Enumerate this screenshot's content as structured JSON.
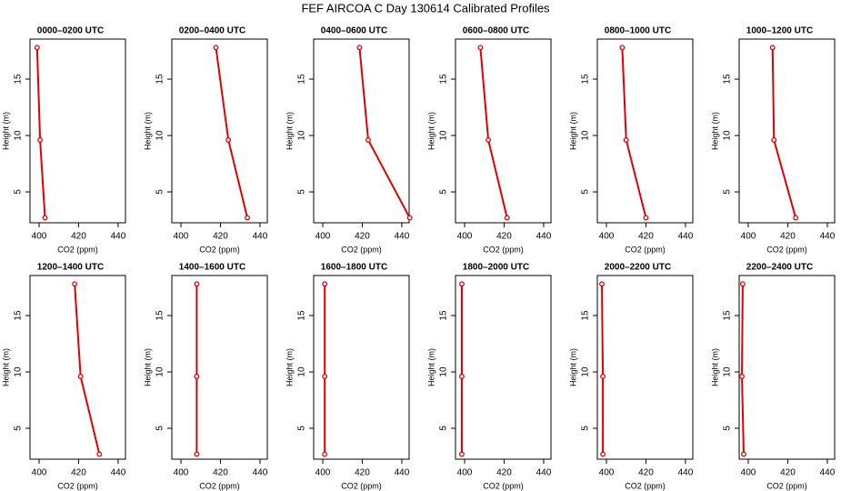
{
  "title": "FEF AIRCOA C  Day 130614  Calibrated Profiles",
  "chart_data": [
    {
      "type": "line",
      "title": "0000–0200 UTC",
      "x": [
        399,
        400.5,
        403
      ],
      "values": [
        17.8,
        9.6,
        2.7
      ],
      "xlabel": "CO2 (ppm)",
      "ylabel": "Height (m)",
      "xlim": [
        395.4,
        443.7
      ],
      "ylim": [
        2.26,
        18.55
      ],
      "xticks": [
        400,
        420,
        440
      ],
      "yticks": [
        5,
        10,
        15
      ],
      "color": "#e00000"
    },
    {
      "type": "line",
      "title": "0200–0400 UTC",
      "x": [
        417.7,
        424,
        433.6
      ],
      "values": [
        17.8,
        9.6,
        2.7
      ],
      "xlabel": "CO2 (ppm)",
      "ylabel": "Height (m)",
      "xlim": [
        395.4,
        443.7
      ],
      "ylim": [
        2.26,
        18.55
      ],
      "xticks": [
        400,
        420,
        440
      ],
      "yticks": [
        5,
        10,
        15
      ],
      "color": "#e00000"
    },
    {
      "type": "line",
      "title": "0400–0600 UTC",
      "x": [
        418.6,
        423,
        444
      ],
      "values": [
        17.8,
        9.6,
        2.7
      ],
      "xlabel": "CO2 (ppm)",
      "ylabel": "Height (m)",
      "xlim": [
        395.4,
        443.7
      ],
      "ylim": [
        2.26,
        18.55
      ],
      "xticks": [
        400,
        420,
        440
      ],
      "yticks": [
        5,
        10,
        15
      ],
      "color": "#e00000"
    },
    {
      "type": "line",
      "title": "0600–0800 UTC",
      "x": [
        408,
        412,
        421.5
      ],
      "values": [
        17.8,
        9.6,
        2.7
      ],
      "xlabel": "CO2 (ppm)",
      "ylabel": "Height (m)",
      "xlim": [
        395.4,
        443.7
      ],
      "ylim": [
        2.26,
        18.55
      ],
      "xticks": [
        400,
        420,
        440
      ],
      "yticks": [
        5,
        10,
        15
      ],
      "color": "#e00000"
    },
    {
      "type": "line",
      "title": "0800–1000 UTC",
      "x": [
        408,
        410,
        420
      ],
      "values": [
        17.8,
        9.6,
        2.7
      ],
      "xlabel": "CO2 (ppm)",
      "ylabel": "Height (m)",
      "xlim": [
        395.4,
        443.7
      ],
      "ylim": [
        2.26,
        18.55
      ],
      "xticks": [
        400,
        420,
        440
      ],
      "yticks": [
        5,
        10,
        15
      ],
      "color": "#e00000"
    },
    {
      "type": "line",
      "title": "1000–1200 UTC",
      "x": [
        412.3,
        413,
        424
      ],
      "values": [
        17.8,
        9.6,
        2.7
      ],
      "xlabel": "CO2 (ppm)",
      "ylabel": "Height (m)",
      "xlim": [
        395.4,
        443.7
      ],
      "ylim": [
        2.26,
        18.55
      ],
      "xticks": [
        400,
        420,
        440
      ],
      "yticks": [
        5,
        10,
        15
      ],
      "color": "#e00000"
    },
    {
      "type": "line",
      "title": "1200–1400 UTC",
      "x": [
        418,
        421,
        430.5
      ],
      "values": [
        17.8,
        9.6,
        2.7
      ],
      "xlabel": "CO2 (ppm)",
      "ylabel": "Height (m)",
      "xlim": [
        395.4,
        443.7
      ],
      "ylim": [
        2.26,
        18.55
      ],
      "xticks": [
        400,
        420,
        440
      ],
      "yticks": [
        5,
        10,
        15
      ],
      "color": "#e00000"
    },
    {
      "type": "line",
      "title": "1400–1600 UTC",
      "x": [
        408,
        408,
        408
      ],
      "values": [
        17.8,
        9.6,
        2.7
      ],
      "xlabel": "CO2 (ppm)",
      "ylabel": "Height (m)",
      "xlim": [
        395.4,
        443.7
      ],
      "ylim": [
        2.26,
        18.55
      ],
      "xticks": [
        400,
        420,
        440
      ],
      "yticks": [
        5,
        10,
        15
      ],
      "color": "#e00000"
    },
    {
      "type": "line",
      "title": "1600–1800 UTC",
      "x": [
        401,
        401,
        401
      ],
      "values": [
        17.8,
        9.6,
        2.7
      ],
      "xlabel": "CO2 (ppm)",
      "ylabel": "Height (m)",
      "xlim": [
        395.4,
        443.7
      ],
      "ylim": [
        2.26,
        18.55
      ],
      "xticks": [
        400,
        420,
        440
      ],
      "yticks": [
        5,
        10,
        15
      ],
      "color": "#e00000"
    },
    {
      "type": "line",
      "title": "1800–2000 UTC",
      "x": [
        398.6,
        398.6,
        398.6
      ],
      "values": [
        17.8,
        9.6,
        2.7
      ],
      "xlabel": "CO2 (ppm)",
      "ylabel": "Height (m)",
      "xlim": [
        395.4,
        443.7
      ],
      "ylim": [
        2.26,
        18.55
      ],
      "xticks": [
        400,
        420,
        440
      ],
      "yticks": [
        5,
        10,
        15
      ],
      "color": "#e00000"
    },
    {
      "type": "line",
      "title": "2000–2200 UTC",
      "x": [
        397.7,
        398.2,
        398.2
      ],
      "values": [
        17.8,
        9.6,
        2.7
      ],
      "xlabel": "CO2 (ppm)",
      "ylabel": "Height (m)",
      "xlim": [
        395.4,
        443.7
      ],
      "ylim": [
        2.26,
        18.55
      ],
      "xticks": [
        400,
        420,
        440
      ],
      "yticks": [
        5,
        10,
        15
      ],
      "color": "#e00000"
    },
    {
      "type": "line",
      "title": "2200–2400 UTC",
      "x": [
        397.2,
        396.8,
        397.7
      ],
      "values": [
        17.8,
        9.6,
        2.7
      ],
      "xlabel": "CO2 (ppm)",
      "ylabel": "Height (m)",
      "xlim": [
        395.4,
        443.7
      ],
      "ylim": [
        2.26,
        18.55
      ],
      "xticks": [
        400,
        420,
        440
      ],
      "yticks": [
        5,
        10,
        15
      ],
      "color": "#e00000"
    }
  ]
}
